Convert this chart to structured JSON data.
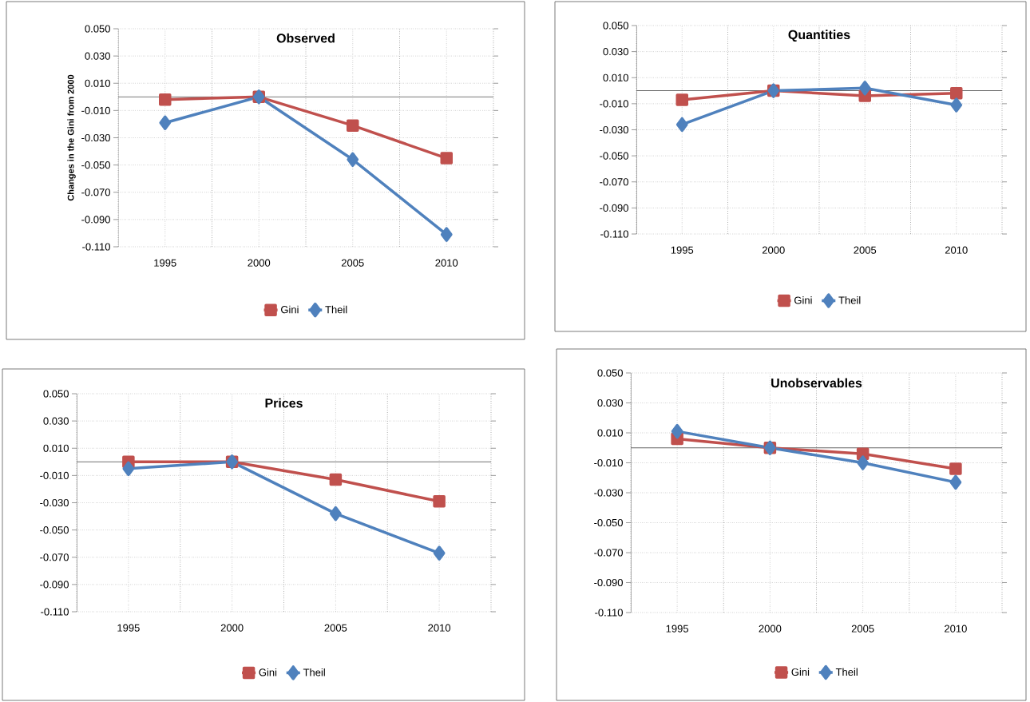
{
  "chart_data": [
    {
      "type": "line",
      "title": "Observed",
      "ylabel": "Changes in the Gini from 2000",
      "categories": [
        "1995",
        "2000",
        "2005",
        "2010"
      ],
      "series": [
        {
          "name": "Gini",
          "color": "#c0504d",
          "marker": "square",
          "values": [
            -0.002,
            0.0,
            -0.021,
            -0.045
          ]
        },
        {
          "name": "Theil",
          "color": "#4f81bd",
          "marker": "diamond",
          "values": [
            -0.019,
            0.0,
            -0.046,
            -0.101
          ]
        }
      ],
      "ylim": [
        -0.11,
        0.05
      ],
      "yticks": [
        {
          "value": 0.05,
          "label": "0.050"
        },
        {
          "value": 0.03,
          "label": "0.030"
        },
        {
          "value": 0.01,
          "label": "0.010"
        },
        {
          "value": -0.01,
          "label": "-0.010"
        },
        {
          "value": -0.03,
          "label": "-0.030"
        },
        {
          "value": -0.05,
          "label": "-0.050"
        },
        {
          "value": -0.07,
          "label": "-0.070"
        },
        {
          "value": -0.09,
          "label": "-0.090"
        },
        {
          "value": -0.11,
          "label": "-0.110"
        }
      ],
      "grid": true,
      "legend": "bottom"
    },
    {
      "type": "line",
      "title": "Quantities",
      "categories": [
        "1995",
        "2000",
        "2005",
        "2010"
      ],
      "series": [
        {
          "name": "Gini",
          "color": "#c0504d",
          "marker": "square",
          "values": [
            -0.007,
            0.0,
            -0.004,
            -0.002
          ]
        },
        {
          "name": "Theil",
          "color": "#4f81bd",
          "marker": "diamond",
          "values": [
            -0.026,
            0.0,
            0.002,
            -0.011
          ]
        }
      ],
      "ylim": [
        -0.11,
        0.05
      ],
      "yticks": [
        {
          "value": 0.05,
          "label": "0.050"
        },
        {
          "value": 0.03,
          "label": "0.030"
        },
        {
          "value": 0.01,
          "label": "0.010"
        },
        {
          "value": -0.01,
          "label": "-0.010"
        },
        {
          "value": -0.03,
          "label": "-0.030"
        },
        {
          "value": -0.05,
          "label": "-0.050"
        },
        {
          "value": -0.07,
          "label": "-0.070"
        },
        {
          "value": -0.09,
          "label": "-0.090"
        },
        {
          "value": -0.11,
          "label": "-0.110"
        }
      ],
      "grid": true,
      "legend": "bottom"
    },
    {
      "type": "line",
      "title": "Prices",
      "categories": [
        "1995",
        "2000",
        "2005",
        "2010"
      ],
      "series": [
        {
          "name": "Gini",
          "color": "#c0504d",
          "marker": "square",
          "values": [
            0.0,
            0.0,
            -0.013,
            -0.029
          ]
        },
        {
          "name": "Theil",
          "color": "#4f81bd",
          "marker": "diamond",
          "values": [
            -0.005,
            0.0,
            -0.038,
            -0.067
          ]
        }
      ],
      "ylim": [
        -0.11,
        0.05
      ],
      "yticks": [
        {
          "value": 0.05,
          "label": "0.050"
        },
        {
          "value": 0.03,
          "label": "0.030"
        },
        {
          "value": 0.01,
          "label": "0.010"
        },
        {
          "value": -0.01,
          "label": "-0.010"
        },
        {
          "value": -0.03,
          "label": "-0.030"
        },
        {
          "value": -0.05,
          "label": "-0.050"
        },
        {
          "value": -0.07,
          "label": "-0.070"
        },
        {
          "value": -0.09,
          "label": "-0.090"
        },
        {
          "value": -0.11,
          "label": "-0.110"
        }
      ],
      "grid": true,
      "legend": "bottom"
    },
    {
      "type": "line",
      "title": "Unobservables",
      "categories": [
        "1995",
        "2000",
        "2005",
        "2010"
      ],
      "series": [
        {
          "name": "Gini",
          "color": "#c0504d",
          "marker": "square",
          "values": [
            0.006,
            0.0,
            -0.004,
            -0.014
          ]
        },
        {
          "name": "Theil",
          "color": "#4f81bd",
          "marker": "diamond",
          "values": [
            0.011,
            0.0,
            -0.01,
            -0.023
          ]
        }
      ],
      "ylim": [
        -0.11,
        0.05
      ],
      "yticks": [
        {
          "value": 0.05,
          "label": "0.050"
        },
        {
          "value": 0.03,
          "label": "0.030"
        },
        {
          "value": 0.01,
          "label": "0.010"
        },
        {
          "value": -0.01,
          "label": "-0.010"
        },
        {
          "value": -0.03,
          "label": "-0.030"
        },
        {
          "value": -0.05,
          "label": "-0.050"
        },
        {
          "value": -0.07,
          "label": "-0.070"
        },
        {
          "value": -0.09,
          "label": "-0.090"
        },
        {
          "value": -0.11,
          "label": "-0.110"
        }
      ],
      "grid": true,
      "legend": "bottom"
    }
  ]
}
